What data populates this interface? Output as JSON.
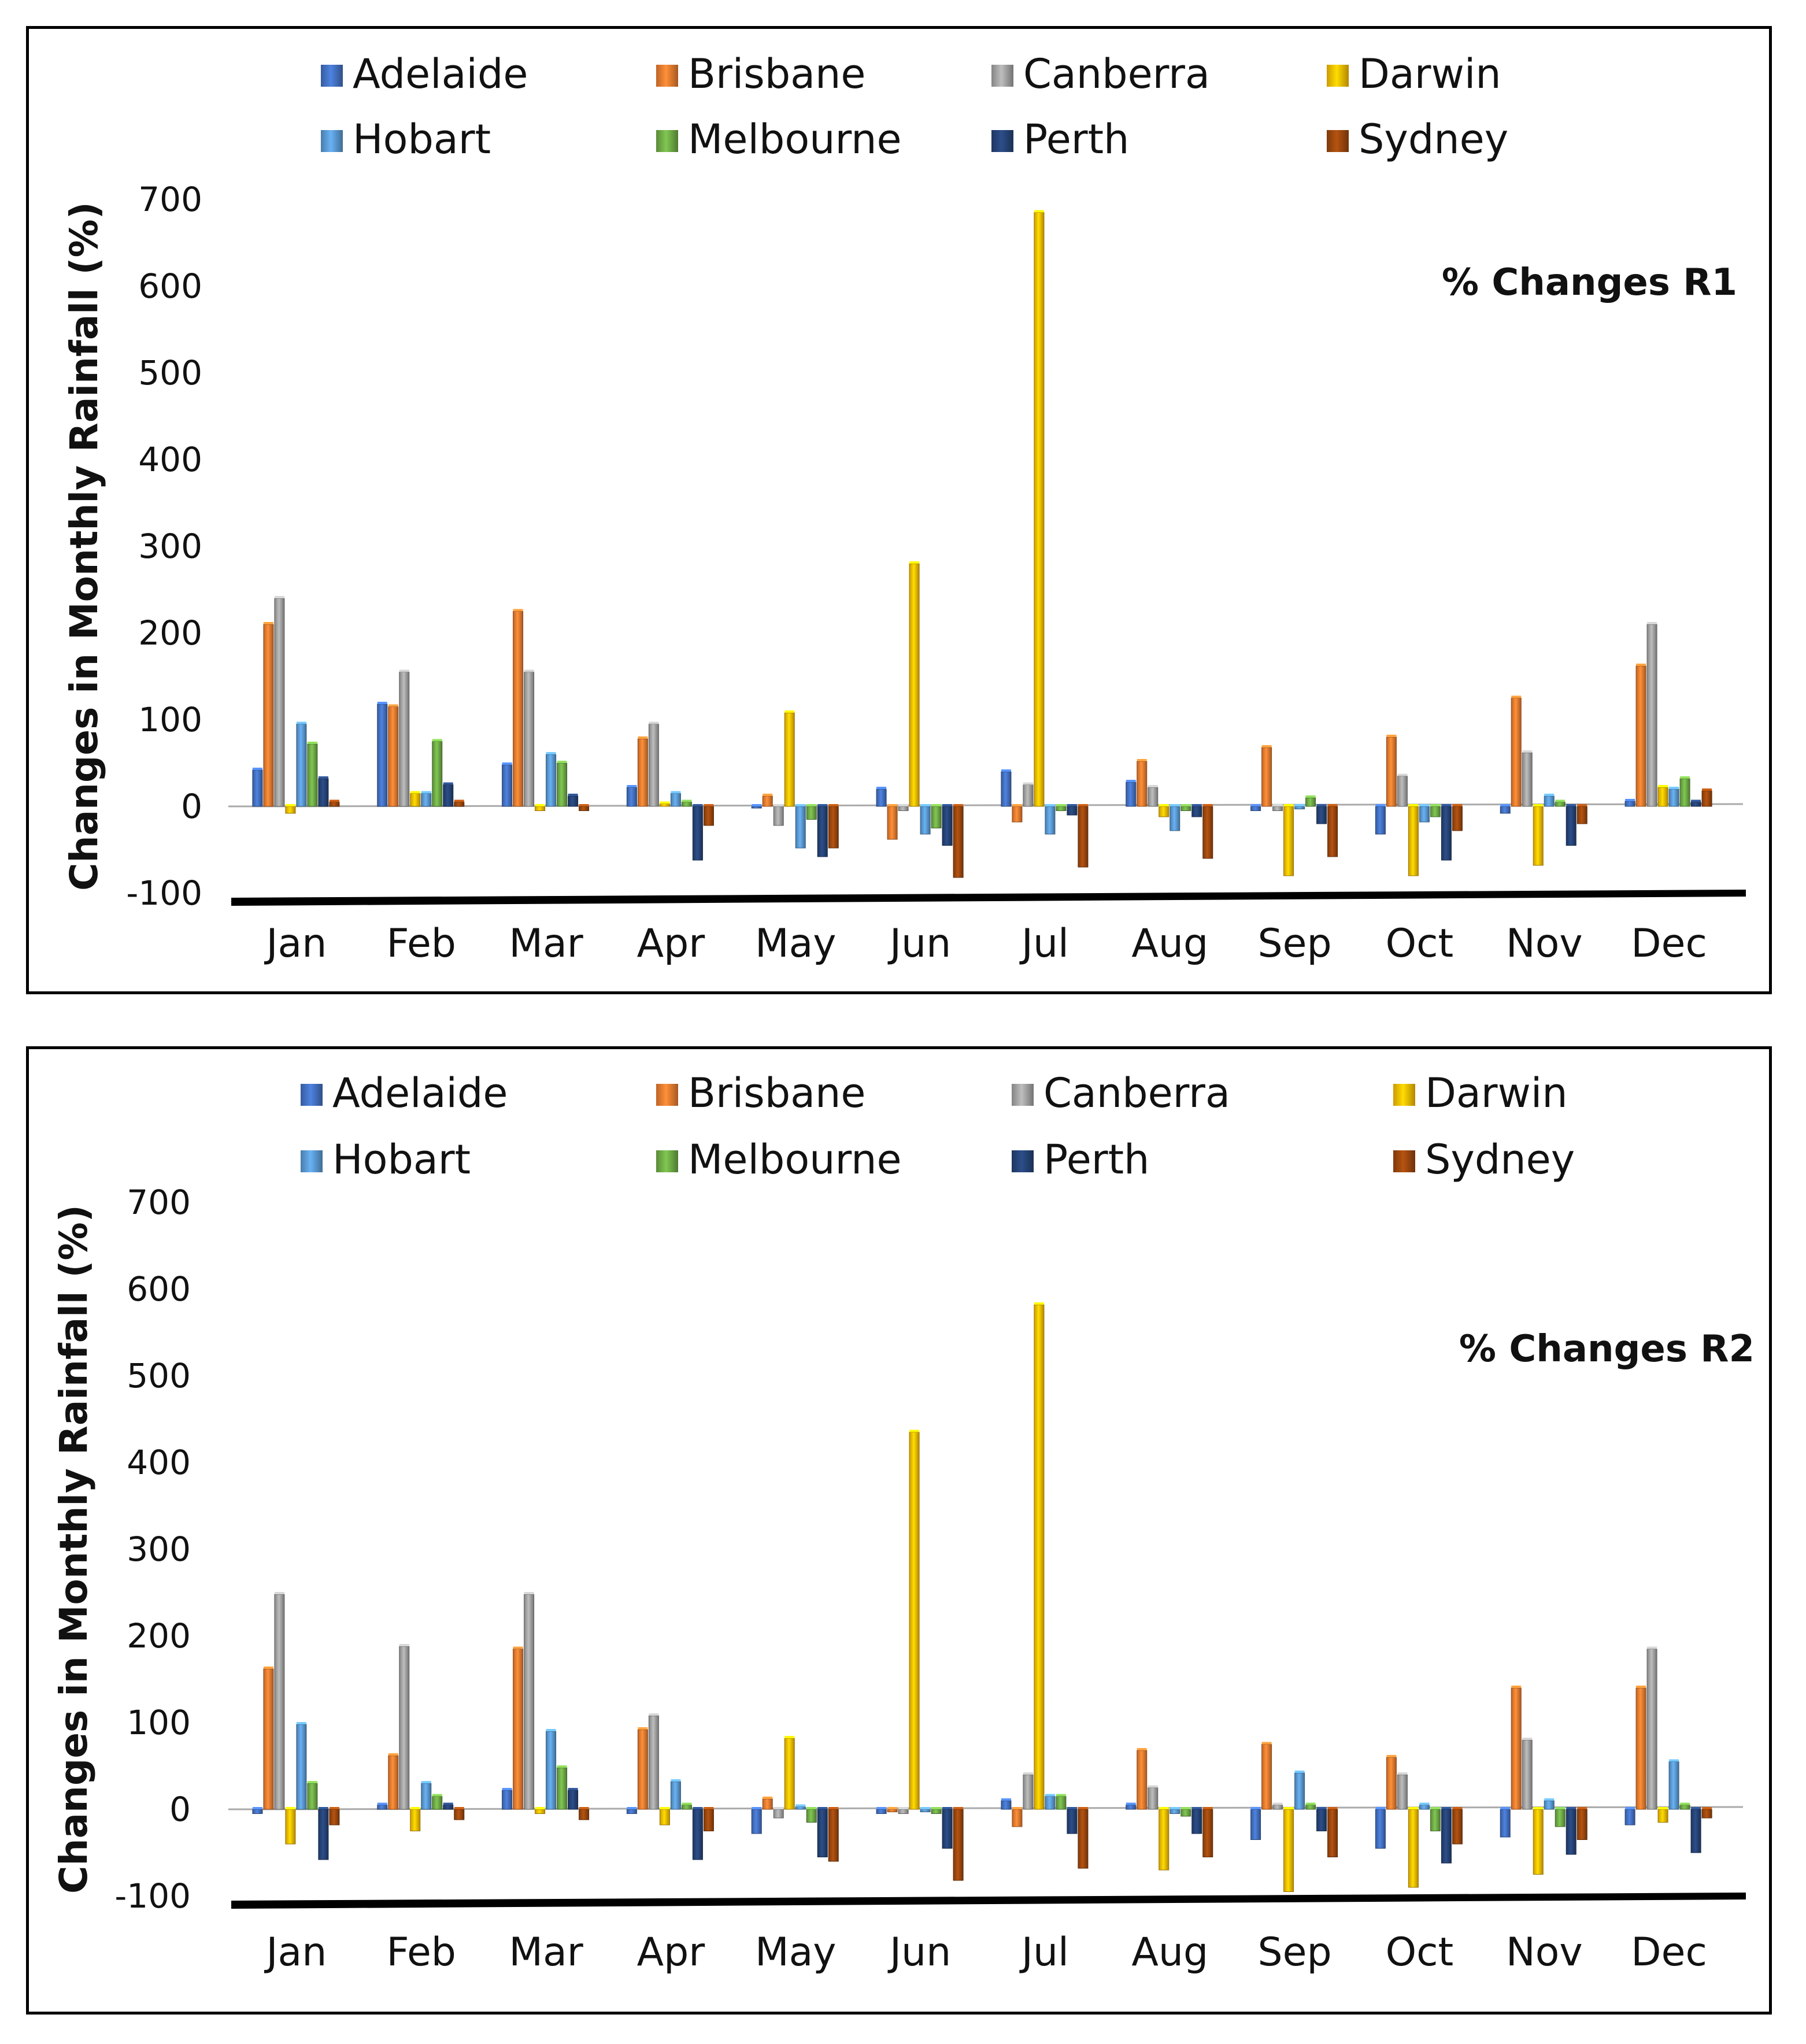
{
  "chart_data": [
    {
      "type": "bar",
      "title": "",
      "annotation": "% Changes R1",
      "ylabel": "Changes in Monthly Rainfall (%)",
      "xlabel": "",
      "ylim": [
        -100,
        700
      ],
      "yticks": [
        -100,
        0,
        100,
        200,
        300,
        400,
        500,
        600,
        700
      ],
      "ytick_labels": [
        "-100",
        "0",
        "100",
        "200",
        "300",
        "400",
        "500",
        "600",
        "700"
      ],
      "legend_position": "top",
      "categories": [
        "Jan",
        "Feb",
        "Mar",
        "Apr",
        "May",
        "Jun",
        "Jul",
        "Aug",
        "Sep",
        "Oct",
        "Nov",
        "Dec"
      ],
      "series": [
        {
          "name": "Adelaide",
          "color": "#4472C4",
          "values": [
            42,
            118,
            48,
            22,
            0,
            20,
            40,
            28,
            -5,
            -32,
            -8,
            6
          ]
        },
        {
          "name": "Brisbane",
          "color": "#ED7D31",
          "values": [
            210,
            115,
            225,
            78,
            12,
            -38,
            -18,
            52,
            68,
            80,
            125,
            162
          ]
        },
        {
          "name": "Canberra",
          "color": "#A5A5A5",
          "values": [
            240,
            155,
            155,
            95,
            -22,
            -5,
            25,
            22,
            -5,
            35,
            62,
            210
          ]
        },
        {
          "name": "Darwin",
          "color": "#FFC000",
          "values": [
            -8,
            15,
            -5,
            3,
            108,
            280,
            685,
            -12,
            -80,
            -80,
            -68,
            22
          ]
        },
        {
          "name": "Hobart",
          "color": "#5B9BD5",
          "values": [
            95,
            15,
            60,
            15,
            -48,
            -32,
            -32,
            -28,
            -3,
            -18,
            12,
            20
          ]
        },
        {
          "name": "Melbourne",
          "color": "#70AD47",
          "values": [
            72,
            75,
            50,
            5,
            -15,
            -25,
            -5,
            -5,
            10,
            -12,
            5,
            32
          ]
        },
        {
          "name": "Perth",
          "color": "#264478",
          "values": [
            32,
            25,
            12,
            -62,
            -58,
            -45,
            -10,
            -12,
            -20,
            -62,
            -45,
            5
          ]
        },
        {
          "name": "Sydney",
          "color": "#9E480E",
          "values": [
            5,
            5,
            -5,
            -22,
            -48,
            -82,
            -70,
            -60,
            -58,
            -28,
            -20,
            18
          ]
        }
      ]
    },
    {
      "type": "bar",
      "title": "",
      "annotation": "% Changes R2",
      "ylabel": "Changes in Monthly Rainfall (%)",
      "xlabel": "",
      "ylim": [
        -100,
        700
      ],
      "yticks": [
        -100,
        0,
        100,
        200,
        300,
        400,
        500,
        600,
        700
      ],
      "ytick_labels": [
        "-100",
        "0",
        "100",
        "200",
        "300",
        "400",
        "500",
        "600",
        "700"
      ],
      "legend_position": "top",
      "categories": [
        "Jan",
        "Feb",
        "Mar",
        "Apr",
        "May",
        "Jun",
        "Jul",
        "Aug",
        "Sep",
        "Oct",
        "Nov",
        "Dec"
      ],
      "series": [
        {
          "name": "Adelaide",
          "color": "#4472C4",
          "values": [
            -5,
            5,
            22,
            -5,
            -28,
            -5,
            10,
            5,
            -35,
            -45,
            -32,
            -18
          ]
        },
        {
          "name": "Brisbane",
          "color": "#ED7D31",
          "values": [
            162,
            62,
            185,
            92,
            12,
            -3,
            -20,
            68,
            75,
            60,
            140,
            140
          ]
        },
        {
          "name": "Canberra",
          "color": "#A5A5A5",
          "values": [
            248,
            188,
            248,
            108,
            -10,
            -5,
            40,
            25,
            5,
            40,
            80,
            185
          ]
        },
        {
          "name": "Darwin",
          "color": "#FFC000",
          "values": [
            -40,
            -25,
            -5,
            -18,
            82,
            435,
            582,
            -70,
            -95,
            -90,
            -75,
            -15
          ]
        },
        {
          "name": "Hobart",
          "color": "#5B9BD5",
          "values": [
            98,
            30,
            90,
            32,
            3,
            -3,
            15,
            -5,
            42,
            5,
            10,
            55
          ]
        },
        {
          "name": "Melbourne",
          "color": "#70AD47",
          "values": [
            30,
            15,
            48,
            5,
            -15,
            -5,
            15,
            -8,
            5,
            -25,
            -20,
            5
          ]
        },
        {
          "name": "Perth",
          "color": "#264478",
          "values": [
            -58,
            5,
            22,
            -58,
            -55,
            -45,
            -28,
            -28,
            -25,
            -62,
            -52,
            -50
          ]
        },
        {
          "name": "Sydney",
          "color": "#9E480E",
          "values": [
            -18,
            -12,
            -12,
            -25,
            -60,
            -82,
            -68,
            -55,
            -55,
            -40,
            -35,
            -10
          ]
        }
      ]
    }
  ]
}
